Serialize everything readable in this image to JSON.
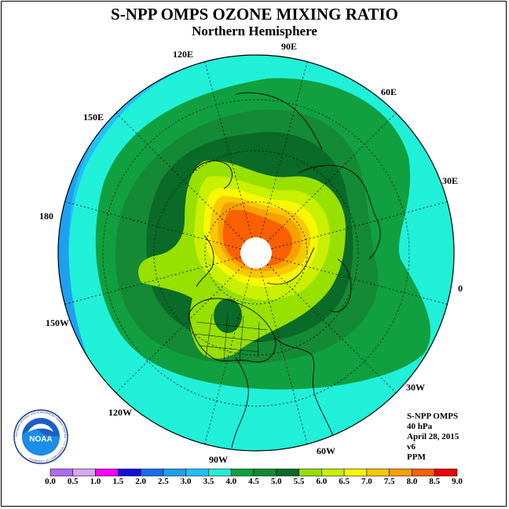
{
  "header": {
    "title": "S-NPP OMPS OZONE MIXING RATIO",
    "subtitle": "Northern Hemisphere"
  },
  "longitude_labels": [
    {
      "id": "90e",
      "text": "90E"
    },
    {
      "id": "60e",
      "text": "60E"
    },
    {
      "id": "30e",
      "text": "30E"
    },
    {
      "id": "0",
      "text": "0"
    },
    {
      "id": "30w",
      "text": "30W"
    },
    {
      "id": "60w",
      "text": "60W"
    },
    {
      "id": "90w",
      "text": "90W"
    },
    {
      "id": "120w",
      "text": "120W"
    },
    {
      "id": "150w",
      "text": "150W"
    },
    {
      "id": "180",
      "text": "180"
    },
    {
      "id": "150e",
      "text": "150E"
    },
    {
      "id": "120e",
      "text": "120E"
    }
  ],
  "info": {
    "instrument": "S-NPP OMPS",
    "level": "40 hPa",
    "date": "April 28, 2015",
    "version": "v6",
    "units": "PPM"
  },
  "colorbar": {
    "ticks": [
      "0.0",
      "0.5",
      "1.0",
      "1.5",
      "2.0",
      "2.5",
      "3.0",
      "3.5",
      "4.0",
      "4.5",
      "5.0",
      "5.5",
      "6.0",
      "6.5",
      "7.0",
      "7.5",
      "8.0",
      "8.5",
      "9.0"
    ],
    "colors": [
      "#b36cf0",
      "#d8a8f0",
      "#ff00ff",
      "#1010e0",
      "#1a6cf0",
      "#1ea0f0",
      "#22c0f8",
      "#20f0d8",
      "#10a040",
      "#148a34",
      "#0a6a28",
      "#98e000",
      "#c8f000",
      "#f8f800",
      "#f8c800",
      "#f8a000",
      "#f86000",
      "#f00000",
      "#8a5a3a"
    ]
  },
  "logo": {
    "name": "NOAA",
    "ring_text": "NATIONAL OCEANIC AND ATMOSPHERIC ADMINISTRATION · U.S. DEPARTMENT OF COMMERCE"
  }
}
